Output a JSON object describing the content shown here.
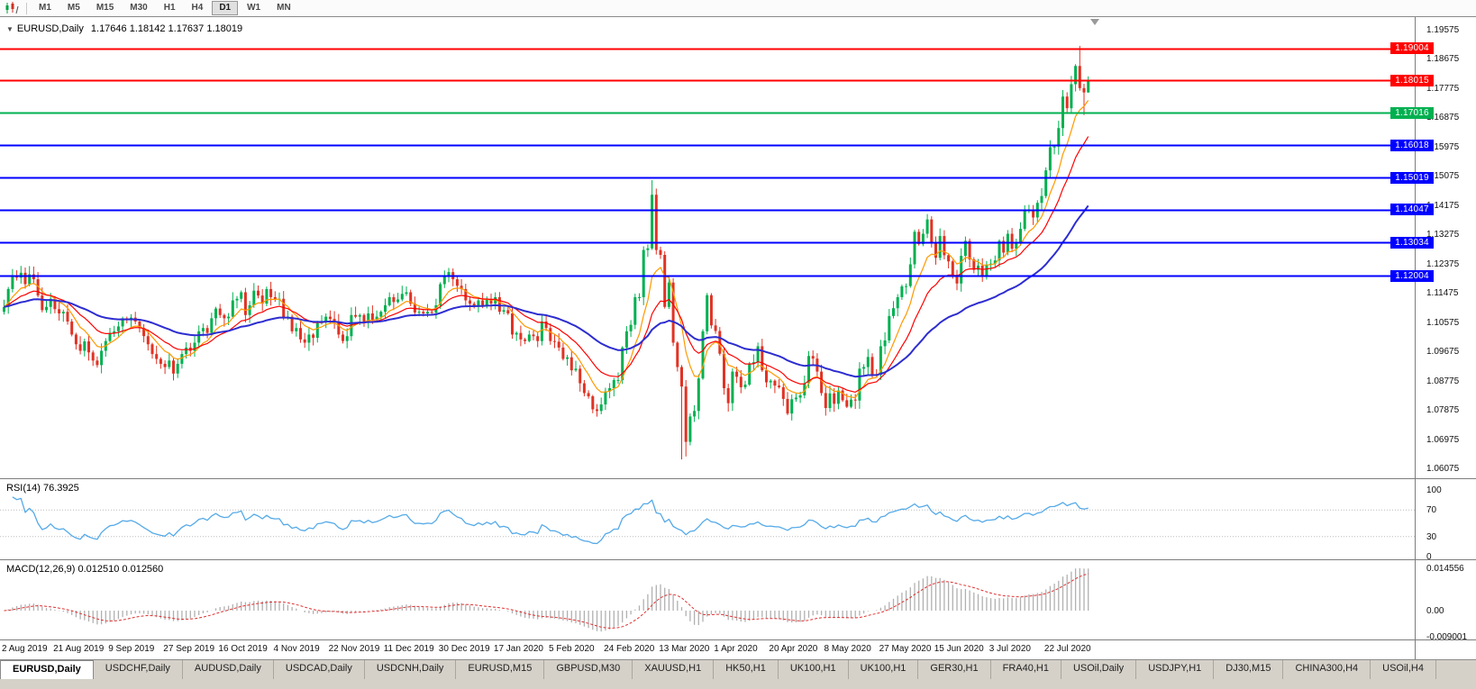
{
  "toolbar": {
    "chart_icon": "candlestick-chart-icon",
    "timeframes": [
      {
        "label": "M1",
        "active": false
      },
      {
        "label": "M5",
        "active": false
      },
      {
        "label": "M15",
        "active": false
      },
      {
        "label": "M30",
        "active": false
      },
      {
        "label": "H1",
        "active": false
      },
      {
        "label": "H4",
        "active": false
      },
      {
        "label": "D1",
        "active": true
      },
      {
        "label": "W1",
        "active": false
      },
      {
        "label": "MN",
        "active": false
      }
    ]
  },
  "chart_header": {
    "collapse_icon": "triangle-down-icon",
    "title": "EURUSD,Daily",
    "ohlc": "1.17646 1.18142 1.17637 1.18019"
  },
  "chart_data": {
    "type": "candlestick",
    "symbol": "EURUSD",
    "timeframe": "Daily",
    "ohlc_display": {
      "open": "1.17646",
      "high": "1.18142",
      "low": "1.17637",
      "close": "1.18019"
    },
    "colors": {
      "bull": "#00b050",
      "bear": "#e03224",
      "axis_border": "#7d7d7d"
    },
    "x_labels": [
      "2 Aug 2019",
      "21 Aug 2019",
      "9 Sep 2019",
      "27 Sep 2019",
      "16 Oct 2019",
      "4 Nov 2019",
      "22 Nov 2019",
      "11 Dec 2019",
      "30 Dec 2019",
      "17 Jan 2020",
      "5 Feb 2020",
      "24 Feb 2020",
      "13 Mar 2020",
      "1 Apr 2020",
      "20 Apr 2020",
      "8 May 2020",
      "27 May 2020",
      "15 Jun 2020",
      "3 Jul 2020",
      "22 Jul 2020"
    ],
    "candles_per_label": 13,
    "closes": [
      1.1105,
      1.116,
      1.12,
      1.1195,
      1.121,
      1.1175,
      1.1205,
      1.119,
      1.114,
      1.1095,
      1.1105,
      1.113,
      1.1098,
      1.1085,
      1.109,
      1.106,
      1.102,
      1.099,
      1.097,
      1.0999,
      1.0965,
      1.094,
      1.0926,
      1.097,
      1.1,
      1.1025,
      1.103,
      1.1045,
      1.107,
      1.1065,
      1.1072,
      1.106,
      1.104,
      1.1015,
      1.099,
      1.096,
      1.0945,
      1.093,
      1.092,
      1.094,
      1.09,
      1.093,
      1.096,
      1.098,
      1.097,
      1.0995,
      1.103,
      1.104,
      1.1025,
      1.107,
      1.11,
      1.108,
      1.107,
      1.1075,
      1.1125,
      1.113,
      1.115,
      1.108,
      1.111,
      1.1155,
      1.114,
      1.1115,
      1.116,
      1.1135,
      1.1128,
      1.113,
      1.107,
      1.1075,
      1.103,
      1.104,
      1.1005,
      1.0995,
      1.102,
      1.101,
      1.1055,
      1.106,
      1.1075,
      1.1068,
      1.106,
      1.102,
      1.1,
      1.1015,
      1.108,
      1.1075,
      1.108,
      1.106,
      1.1085,
      1.1065,
      1.1075,
      1.109,
      1.111,
      1.1135,
      1.112,
      1.1128,
      1.1145,
      1.115,
      1.1115,
      1.1088,
      1.109,
      1.1085,
      1.109,
      1.1087,
      1.111,
      1.1175,
      1.12,
      1.1212,
      1.119,
      1.117,
      1.116,
      1.1125,
      1.1115,
      1.1105,
      1.1125,
      1.111,
      1.113,
      1.1115,
      1.1135,
      1.109,
      1.1095,
      1.1085,
      1.102,
      1.1025,
      1.1005,
      1.1,
      1.102,
      1.1015,
      1.1,
      1.106,
      1.104,
      1.1,
      1.0998,
      1.098,
      1.0945,
      1.095,
      1.091,
      1.0915,
      1.087,
      1.084,
      1.083,
      1.079,
      1.0785,
      1.0805,
      1.0845,
      1.0855,
      1.088,
      1.088,
      1.098,
      1.103,
      1.105,
      1.1135,
      1.1135,
      1.128,
      1.1285,
      1.145,
      1.128,
      1.1265,
      1.1105,
      1.118,
      1.0995,
      1.092,
      1.086,
      1.069,
      1.0768,
      1.0785,
      1.0885,
      1.103,
      1.1141,
      1.1048,
      1.1031,
      1.0961,
      1.0855,
      1.0809,
      1.0906,
      1.089,
      1.0858,
      1.0866,
      1.093,
      1.0935,
      1.0984,
      1.091,
      1.0873,
      1.0878,
      1.0863,
      1.0858,
      1.0822,
      1.0777,
      1.0821,
      1.0826,
      1.0833,
      1.087,
      1.0954,
      1.0946,
      1.0906,
      1.084,
      1.0794,
      1.0839,
      1.0807,
      1.0848,
      1.0818,
      1.0798,
      1.082,
      1.0817,
      1.0915,
      1.092,
      1.0951,
      1.0898,
      1.0896,
      1.0984,
      1.1002,
      1.1077,
      1.1101,
      1.1135,
      1.1168,
      1.1169,
      1.1236,
      1.1336,
      1.1298,
      1.133,
      1.1374,
      1.13,
      1.1256,
      1.1323,
      1.1264,
      1.1245,
      1.1204,
      1.1177,
      1.1262,
      1.1308,
      1.1251,
      1.1219,
      1.1232,
      1.1198,
      1.1235,
      1.1238,
      1.1248,
      1.1308,
      1.1272,
      1.133,
      1.1284,
      1.13,
      1.1345,
      1.1401,
      1.1402,
      1.138,
      1.1425,
      1.1446,
      1.1525,
      1.1596,
      1.1598,
      1.1655,
      1.1752,
      1.1716,
      1.179,
      1.1846,
      1.1778,
      1.17646,
      1.18019
    ],
    "wick_overrides": {
      "40": {
        "l": 1.0879
      },
      "139": {
        "l": 1.0778
      },
      "153": {
        "h": 1.1495
      },
      "160": {
        "l": 1.0636
      },
      "161": {
        "l": 1.0645
      },
      "254": {
        "h": 1.1908
      },
      "255": {
        "l": 1.1695
      },
      "256": {
        "h": 1.18142,
        "l": 1.17637
      }
    },
    "moving_averages": [
      {
        "period": 8,
        "color": "#ff9900",
        "width": 1.2,
        "name": "ma-fast-orange"
      },
      {
        "period": 17,
        "color": "#ff0000",
        "width": 1.2,
        "name": "ma-mid-red"
      },
      {
        "period": 45,
        "color": "#2d2dd0",
        "width": 2,
        "name": "ma-slow-blue"
      }
    ],
    "levels": [
      {
        "price": 1.19004,
        "label": "1.19004",
        "color": "#ff0000"
      },
      {
        "price": 1.18015,
        "label": "1.18015",
        "color": "#ff0000"
      },
      {
        "price": 1.17016,
        "label": "1.17016",
        "color": "#00b050"
      },
      {
        "price": 1.16018,
        "label": "1.16018",
        "color": "#0000ff"
      },
      {
        "price": 1.15019,
        "label": "1.15019",
        "color": "#0000ff"
      },
      {
        "price": 1.14047,
        "label": "1.14047",
        "color": "#0000ff"
      },
      {
        "price": 1.13034,
        "label": "1.13034",
        "color": "#0000ff"
      },
      {
        "price": 1.12004,
        "label": "1.12004",
        "color": "#0000ff"
      }
    ],
    "price_axis": {
      "ticks": [
        "1.19575",
        "1.18675",
        "1.17775",
        "1.16875",
        "1.15975",
        "1.15075",
        "1.14175",
        "1.13275",
        "1.12375",
        "1.11475",
        "1.10575",
        "1.09675",
        "1.08775",
        "1.07875",
        "1.06975",
        "1.06075"
      ]
    },
    "rsi": {
      "label": "RSI(14) 76.3925",
      "period": 14,
      "current": 76.3925,
      "color": "#55aae8",
      "levels": [
        70,
        30
      ],
      "ticks": [
        {
          "v": 100,
          "t": "100"
        },
        {
          "v": 70,
          "t": "70"
        },
        {
          "v": 30,
          "t": "30"
        },
        {
          "v": 0,
          "t": "0"
        }
      ]
    },
    "macd": {
      "label": "MACD(12,26,9) 0.012510 0.012560",
      "fast": 12,
      "slow": 26,
      "signal": 9,
      "main_display": "0.012510",
      "signal_display": "0.012560",
      "hist_color": "#b0b0b0",
      "signal_color": "#e03030",
      "ticks": [
        {
          "v": 0.014556,
          "t": "0.014556"
        },
        {
          "v": 0,
          "t": "0.00"
        },
        {
          "v": -0.009001,
          "t": "-0.009001"
        }
      ]
    }
  },
  "bottom_tabs": [
    {
      "label": "EURUSD,Daily",
      "active": true
    },
    {
      "label": "USDCHF,Daily",
      "active": false
    },
    {
      "label": "AUDUSD,Daily",
      "active": false
    },
    {
      "label": "USDCAD,Daily",
      "active": false
    },
    {
      "label": "USDCNH,Daily",
      "active": false
    },
    {
      "label": "EURUSD,M15",
      "active": false
    },
    {
      "label": "GBPUSD,M30",
      "active": false
    },
    {
      "label": "XAUUSD,H1",
      "active": false
    },
    {
      "label": "HK50,H1",
      "active": false
    },
    {
      "label": "UK100,H1",
      "active": false
    },
    {
      "label": "UK100,H1",
      "active": false
    },
    {
      "label": "GER30,H1",
      "active": false
    },
    {
      "label": "FRA40,H1",
      "active": false
    },
    {
      "label": "USOil,Daily",
      "active": false
    },
    {
      "label": "USDJPY,H1",
      "active": false
    },
    {
      "label": "DJ30,M15",
      "active": false
    },
    {
      "label": "CHINA300,H4",
      "active": false
    },
    {
      "label": "USOil,H4",
      "active": false
    }
  ]
}
